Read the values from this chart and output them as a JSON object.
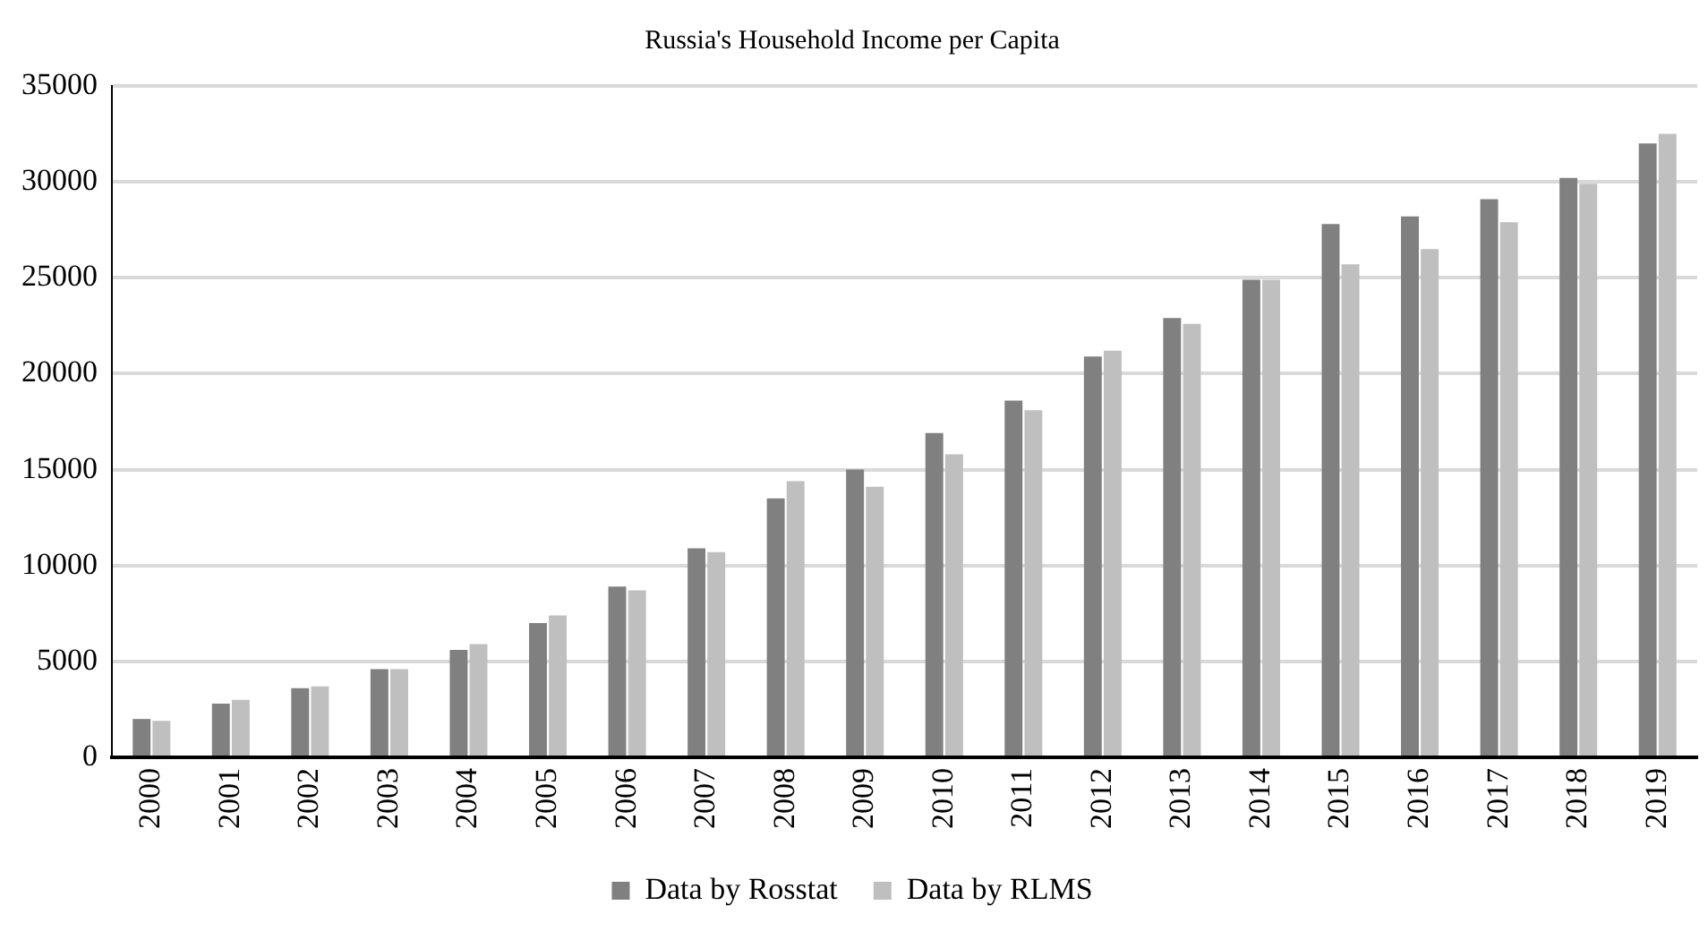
{
  "chart_data": {
    "type": "bar",
    "title": "Russia's Household Income per Capita",
    "categories": [
      "2000",
      "2001",
      "2002",
      "2003",
      "2004",
      "2005",
      "2006",
      "2007",
      "2008",
      "2009",
      "2010",
      "2011",
      "2012",
      "2013",
      "2014",
      "2015",
      "2016",
      "2017",
      "2018",
      "2019"
    ],
    "series": [
      {
        "name": "Data by Rosstat",
        "color": "#808080",
        "values": [
          2000,
          2800,
          3600,
          4600,
          5600,
          7000,
          8900,
          10900,
          13500,
          15000,
          16900,
          18600,
          20900,
          22900,
          24900,
          27800,
          28200,
          29100,
          30200,
          32000
        ]
      },
      {
        "name": "Data by RLMS",
        "color": "#bfbfbf",
        "values": [
          1900,
          3000,
          3700,
          4600,
          5900,
          7400,
          8700,
          10700,
          14400,
          14100,
          15800,
          18100,
          21200,
          22600,
          24900,
          25700,
          26500,
          27900,
          29900,
          32500
        ]
      }
    ],
    "ylim": [
      0,
      35000
    ],
    "yticks": [
      0,
      5000,
      10000,
      15000,
      20000,
      25000,
      30000,
      35000
    ],
    "grid": "y",
    "legend": "bottom"
  }
}
